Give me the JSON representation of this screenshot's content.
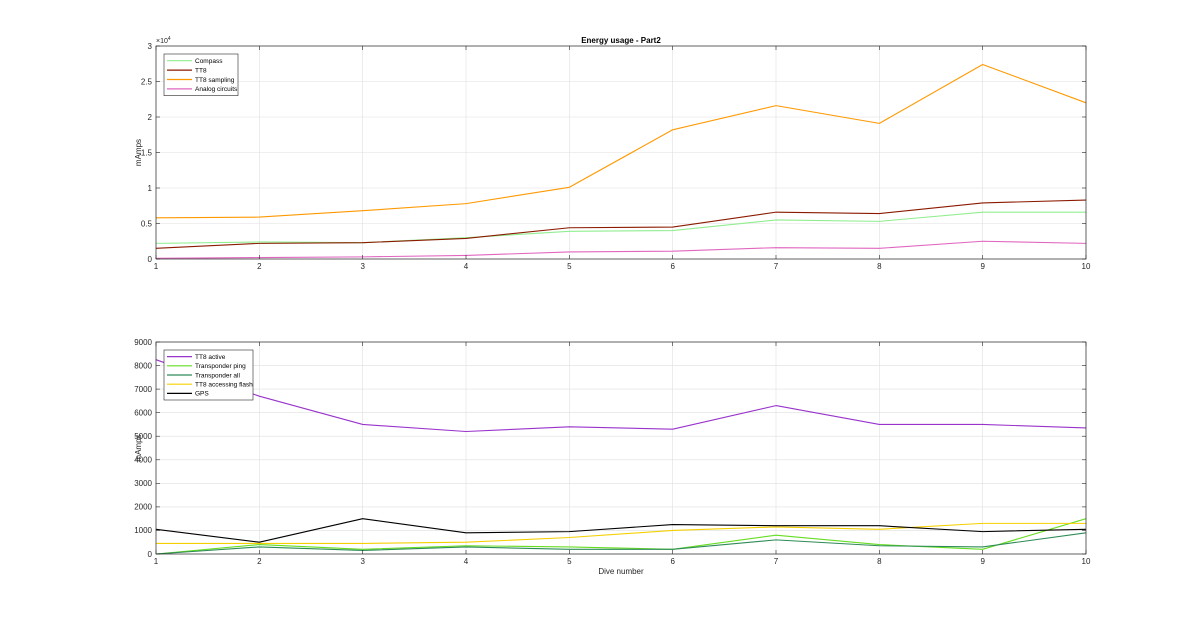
{
  "chart_data": [
    {
      "type": "line",
      "title": "Energy usage - Part2",
      "xlabel": "",
      "ylabel": "mAmps",
      "xlim": [
        1,
        10
      ],
      "ylim": [
        0,
        30000
      ],
      "y_exponent_label": "×10",
      "y_exponent_power": "4",
      "x_ticks": [
        1,
        2,
        3,
        4,
        5,
        6,
        7,
        8,
        9,
        10
      ],
      "x_tick_labels": [
        "1",
        "2",
        "3",
        "4",
        "5",
        "6",
        "7",
        "8",
        "9",
        "10"
      ],
      "y_ticks": [
        0,
        5000,
        10000,
        15000,
        20000,
        25000,
        30000
      ],
      "y_tick_labels": [
        "0",
        "0.5",
        "1",
        "1.5",
        "2",
        "2.5",
        "3"
      ],
      "grid": true,
      "legend_position": "top-left",
      "x": [
        1,
        2,
        3,
        4,
        5,
        6,
        7,
        8,
        9,
        10
      ],
      "series": [
        {
          "name": "Compass",
          "color": "#90ee90",
          "values": [
            2200,
            2400,
            2300,
            3000,
            3900,
            4000,
            5500,
            5300,
            6600,
            6600
          ]
        },
        {
          "name": "TT8",
          "color": "#8b1a00",
          "values": [
            1500,
            2200,
            2300,
            2900,
            4400,
            4500,
            6600,
            6400,
            7900,
            8300
          ]
        },
        {
          "name": "TT8 sampling",
          "color": "#ff9900",
          "values": [
            5800,
            5900,
            6800,
            7800,
            10100,
            18200,
            21600,
            19100,
            27400,
            22000
          ]
        },
        {
          "name": "Analog circuits",
          "color": "#e066c0",
          "values": [
            100,
            200,
            300,
            500,
            1000,
            1100,
            1600,
            1500,
            2500,
            2200
          ]
        }
      ]
    },
    {
      "type": "line",
      "title": "",
      "xlabel": "Dive number",
      "ylabel": "mAmps",
      "xlim": [
        1,
        10
      ],
      "ylim": [
        0,
        9000
      ],
      "x_ticks": [
        1,
        2,
        3,
        4,
        5,
        6,
        7,
        8,
        9,
        10
      ],
      "x_tick_labels": [
        "1",
        "2",
        "3",
        "4",
        "5",
        "6",
        "7",
        "8",
        "9",
        "10"
      ],
      "y_ticks": [
        0,
        1000,
        2000,
        3000,
        4000,
        5000,
        6000,
        7000,
        8000,
        9000
      ],
      "y_tick_labels": [
        "0",
        "1000",
        "2000",
        "3000",
        "4000",
        "5000",
        "6000",
        "7000",
        "8000",
        "9000"
      ],
      "grid": true,
      "legend_position": "top-left",
      "x": [
        1,
        2,
        3,
        4,
        5,
        6,
        7,
        8,
        9,
        10
      ],
      "series": [
        {
          "name": "TT8 active",
          "color": "#9933cc",
          "values": [
            8250,
            6700,
            5500,
            5200,
            5400,
            5300,
            6300,
            5500,
            5500,
            5350
          ]
        },
        {
          "name": "Transponder ping",
          "color": "#66dd22",
          "values": [
            0,
            400,
            200,
            350,
            300,
            200,
            800,
            400,
            200,
            1500
          ]
        },
        {
          "name": "Transponder all",
          "color": "#2e8b57",
          "values": [
            0,
            300,
            150,
            300,
            200,
            200,
            600,
            350,
            300,
            900
          ]
        },
        {
          "name": "TT8 accessing flash",
          "color": "#f5d000",
          "values": [
            450,
            450,
            450,
            500,
            700,
            1000,
            1150,
            1050,
            1300,
            1300
          ]
        },
        {
          "name": "GPS",
          "color": "#000000",
          "values": [
            1050,
            500,
            1500,
            900,
            950,
            1250,
            1200,
            1200,
            950,
            1050
          ]
        }
      ]
    }
  ]
}
